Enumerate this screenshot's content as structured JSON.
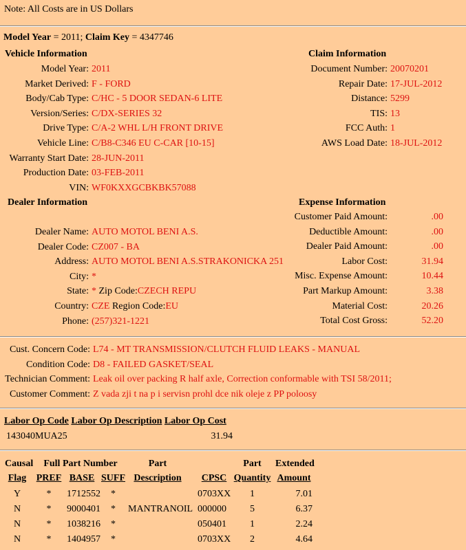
{
  "note": "Note: All Costs are in US Dollars",
  "header": {
    "model_year_label": "Model Year",
    "model_year": "2011",
    "claim_key_label": "Claim Key",
    "claim_key": "4347746"
  },
  "vehicle": {
    "title": "Vehicle Information",
    "rows": [
      {
        "label": "Model Year:",
        "value": "2011"
      },
      {
        "label": "Market Derived:",
        "value": "F - FORD"
      },
      {
        "label": "Body/Cab Type:",
        "value": "C/HC - 5 DOOR SEDAN-6 LITE"
      },
      {
        "label": "Version/Series:",
        "value": "C/DX-SERIES 32"
      },
      {
        "label": "Drive Type:",
        "value": "C/A-2 WHL L/H FRONT DRIVE"
      },
      {
        "label": "Vehicle Line:",
        "value": "C/B8-C346 EU C-CAR [10-15]"
      },
      {
        "label": "Warranty Start Date:",
        "value": "28-JUN-2011"
      },
      {
        "label": "Production Date:",
        "value": "03-FEB-2011"
      },
      {
        "label": "VIN:",
        "value": "WF0KXXGCBKBK57088"
      }
    ]
  },
  "claim": {
    "title": "Claim Information",
    "rows": [
      {
        "label": "Document Number:",
        "value": "20070201"
      },
      {
        "label": "Repair Date:",
        "value": "17-JUL-2012"
      },
      {
        "label": "Distance:",
        "value": "5299"
      },
      {
        "label": "TIS:",
        "value": "13"
      },
      {
        "label": "FCC Auth:",
        "value": "1"
      },
      {
        "label": "AWS Load Date:",
        "value": "18-JUL-2012"
      }
    ]
  },
  "dealer": {
    "title": "Dealer Information",
    "rows": [
      {
        "label": "Dealer Name:",
        "value": "AUTO MOTOL BENI A.S."
      },
      {
        "label": "Dealer Code:",
        "value": "CZ007 - BA"
      },
      {
        "label": "Address:",
        "value": "AUTO MOTOL BENI A.S.STRAKONICKA 251"
      },
      {
        "label": "City:",
        "value": "*"
      },
      {
        "label": "State:",
        "value": "*",
        "extra_label": "Zip Code:",
        "extra_value": "CZECH REPU"
      },
      {
        "label": "Country:",
        "value": "CZE",
        "extra_label": "Region Code:",
        "extra_value": "EU"
      },
      {
        "label": "Phone:",
        "value": "(257)321-1221"
      }
    ]
  },
  "expense": {
    "title": "Expense Information",
    "rows": [
      {
        "label": "Customer Paid Amount:",
        "value": ".00"
      },
      {
        "label": "Deductible Amount:",
        "value": ".00"
      },
      {
        "label": "Dealer Paid Amount:",
        "value": ".00"
      },
      {
        "label": "Labor Cost:",
        "value": "31.94"
      },
      {
        "label": "Misc. Expense Amount:",
        "value": "10.44"
      },
      {
        "label": "Part Markup Amount:",
        "value": "3.38"
      },
      {
        "label": "Material Cost:",
        "value": "20.26"
      },
      {
        "label": "Total Cost Gross:",
        "value": "52.20"
      }
    ]
  },
  "comments": [
    {
      "label": "Cust. Concern Code:",
      "value": "L74 - MT TRANSMISSION/CLUTCH FLUID LEAKS - MANUAL"
    },
    {
      "label": "Condition Code:",
      "value": "D8 - FAILED GASKET/SEAL"
    },
    {
      "label": "Technician Comment:",
      "value": "Leak oil over packing R half axle, Correction conformable with TSI 58/2011;"
    },
    {
      "label": "Customer Comment:",
      "value": "Z vada zji t na p i servisn prohl dce nik oleje z PP poloosy"
    }
  ],
  "labor": {
    "headers": [
      "Labor Op Code",
      "Labor Op Description",
      "Labor Op Cost"
    ],
    "rows": [
      [
        "143040MUA25",
        "",
        "31.94"
      ]
    ]
  },
  "parts": {
    "group_headers": [
      "Causal",
      "Full Part Number",
      "Part",
      "",
      "Part",
      "Extended"
    ],
    "headers": [
      "Flag",
      "PREF",
      "BASE",
      "SUFF",
      "Description",
      "CPSC",
      "Quantity",
      "Amount"
    ],
    "rows": [
      [
        "Y",
        "*",
        "1712552",
        "*",
        "",
        "0703XX",
        "1",
        "7.01"
      ],
      [
        "N",
        "*",
        "9000401",
        "*",
        "MANTRANOIL",
        "000000",
        "5",
        "6.37"
      ],
      [
        "N",
        "*",
        "1038216",
        "*",
        "",
        "050401",
        "1",
        "2.24"
      ],
      [
        "N",
        "*",
        "1404957",
        "*",
        "",
        "0703XX",
        "2",
        "4.64"
      ]
    ]
  }
}
